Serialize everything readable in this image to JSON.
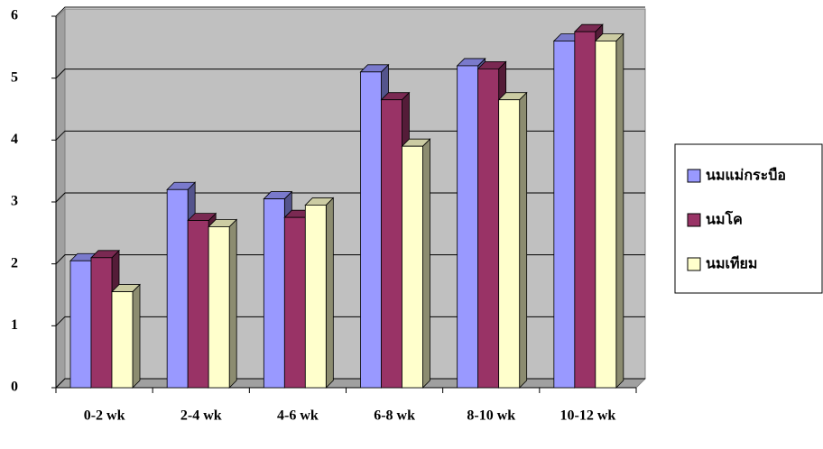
{
  "chart_data": {
    "type": "bar",
    "categories": [
      "0-2 wk",
      "2-4 wk",
      "4-6 wk",
      "6-8 wk",
      "8-10 wk",
      "10-12 wk"
    ],
    "series": [
      {
        "name": "นมแม่กระบือ",
        "color": "#9999ff",
        "values": [
          2.05,
          3.2,
          3.05,
          5.1,
          5.2,
          5.6
        ]
      },
      {
        "name": "นมโค",
        "color": "#993366",
        "values": [
          2.1,
          2.7,
          2.75,
          4.65,
          5.15,
          5.75
        ]
      },
      {
        "name": "นมเทียม",
        "color": "#ffffcc",
        "values": [
          1.55,
          2.6,
          2.95,
          3.9,
          4.65,
          5.6
        ]
      }
    ],
    "ylim": [
      0,
      6
    ],
    "yticks": [
      0,
      1,
      2,
      3,
      4,
      5,
      6
    ],
    "grid": true,
    "legend": "right"
  }
}
